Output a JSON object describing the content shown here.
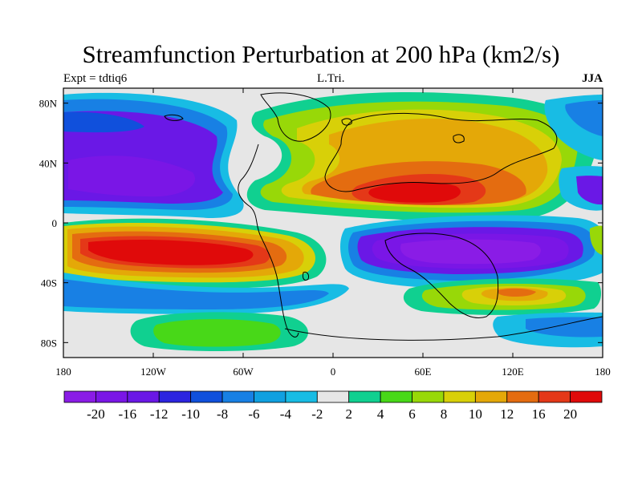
{
  "title": "Streamfunction Perturbation at 200 hPa (km2/s)",
  "left_label": "Expt = tdtiq6",
  "center_label": "L.Tri.",
  "right_label": "JJA",
  "chart_data": {
    "type": "contour-map",
    "projection": "cylindrical equidistant",
    "variable": "streamfunction perturbation",
    "units": "km2/s",
    "level": "200 hPa",
    "x_range": [
      180,
      -180
    ],
    "y_range": [
      -90,
      90
    ],
    "x_ticks": [
      {
        "value": 180,
        "label": "180"
      },
      {
        "value": -120,
        "label": "120W"
      },
      {
        "value": -60,
        "label": "60W"
      },
      {
        "value": 0,
        "label": "0"
      },
      {
        "value": 60,
        "label": "60E"
      },
      {
        "value": 120,
        "label": "120E"
      },
      {
        "value": 180,
        "label": "180"
      }
    ],
    "y_ticks": [
      {
        "value": 80,
        "label": "80N"
      },
      {
        "value": 40,
        "label": "40N"
      },
      {
        "value": 0,
        "label": "0"
      },
      {
        "value": -40,
        "label": "40S"
      },
      {
        "value": -80,
        "label": "80S"
      }
    ],
    "colorbar": {
      "colors": [
        "#8a1ce6",
        "#7a16e6",
        "#6a18e6",
        "#2c24e0",
        "#1050dc",
        "#1880e4",
        "#10a0e0",
        "#18bce4",
        "#e6e6e6",
        "#10d090",
        "#48d818",
        "#98d808",
        "#d8d008",
        "#e4a808",
        "#e46c10",
        "#e43818",
        "#e00a0a"
      ],
      "labels": [
        "-20",
        "-16",
        "-12",
        "-10",
        "-8",
        "-6",
        "-4",
        "-2",
        "2",
        "4",
        "6",
        "8",
        "10",
        "12",
        "16",
        "20"
      ]
    },
    "features": [
      {
        "label": "positive maximum over Eurasia / Asia",
        "lon": 45,
        "lat": 18,
        "value": 20
      },
      {
        "label": "positive maximum over south-central Pacific",
        "lon": -100,
        "lat": -15,
        "value": 20
      },
      {
        "label": "negative minimum over Indian Ocean",
        "lon": 80,
        "lat": -15,
        "value": -20
      },
      {
        "label": "negative minimum over north-east Pacific",
        "lon": -130,
        "lat": 25,
        "value": -20
      }
    ]
  }
}
